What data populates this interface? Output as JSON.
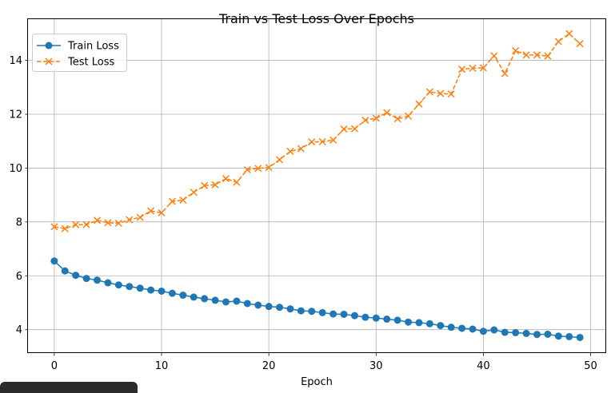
{
  "chart_data": {
    "type": "line",
    "title": "Train vs Test Loss Over Epochs",
    "xlabel": "Epoch",
    "ylabel": "",
    "xlim": [
      -2.45,
      51.45
    ],
    "ylim": [
      3.13,
      15.53
    ],
    "xticks": [
      0,
      10,
      20,
      30,
      40,
      50
    ],
    "yticks": [
      4,
      6,
      8,
      10,
      12,
      14
    ],
    "grid": true,
    "legend": "top-left",
    "x": [
      0,
      1,
      2,
      3,
      4,
      5,
      6,
      7,
      8,
      9,
      10,
      11,
      12,
      13,
      14,
      15,
      16,
      17,
      18,
      19,
      20,
      21,
      22,
      23,
      24,
      25,
      26,
      27,
      28,
      29,
      30,
      31,
      32,
      33,
      34,
      35,
      36,
      37,
      38,
      39,
      40,
      41,
      42,
      43,
      44,
      45,
      46,
      47,
      48,
      49
    ],
    "series": [
      {
        "name": "Train Loss",
        "color": "#1f77b4",
        "marker": "o",
        "linestyle": "solid",
        "values": [
          6.55,
          6.18,
          6.02,
          5.9,
          5.84,
          5.74,
          5.66,
          5.6,
          5.54,
          5.47,
          5.43,
          5.35,
          5.28,
          5.21,
          5.15,
          5.09,
          5.03,
          5.06,
          4.97,
          4.91,
          4.86,
          4.83,
          4.77,
          4.7,
          4.68,
          4.63,
          4.58,
          4.57,
          4.52,
          4.46,
          4.43,
          4.39,
          4.35,
          4.28,
          4.26,
          4.22,
          4.15,
          4.09,
          4.05,
          4.02,
          3.94,
          3.99,
          3.9,
          3.89,
          3.86,
          3.82,
          3.83,
          3.76,
          3.74,
          3.71
        ]
      },
      {
        "name": "Test Loss",
        "color": "#ff7f0e",
        "marker": "x",
        "linestyle": "dashed",
        "values": [
          7.82,
          7.75,
          7.9,
          7.9,
          8.06,
          7.97,
          7.95,
          8.08,
          8.17,
          8.41,
          8.34,
          8.76,
          8.81,
          9.1,
          9.35,
          9.38,
          9.61,
          9.47,
          9.94,
          9.99,
          10.02,
          10.31,
          10.62,
          10.72,
          10.97,
          10.98,
          11.04,
          11.45,
          11.46,
          11.78,
          11.85,
          12.06,
          11.83,
          11.93,
          12.38,
          12.83,
          12.77,
          12.75,
          13.67,
          13.71,
          13.72,
          14.17,
          13.51,
          14.36,
          14.2,
          14.2,
          14.16,
          14.7,
          14.99,
          14.62
        ]
      }
    ]
  }
}
